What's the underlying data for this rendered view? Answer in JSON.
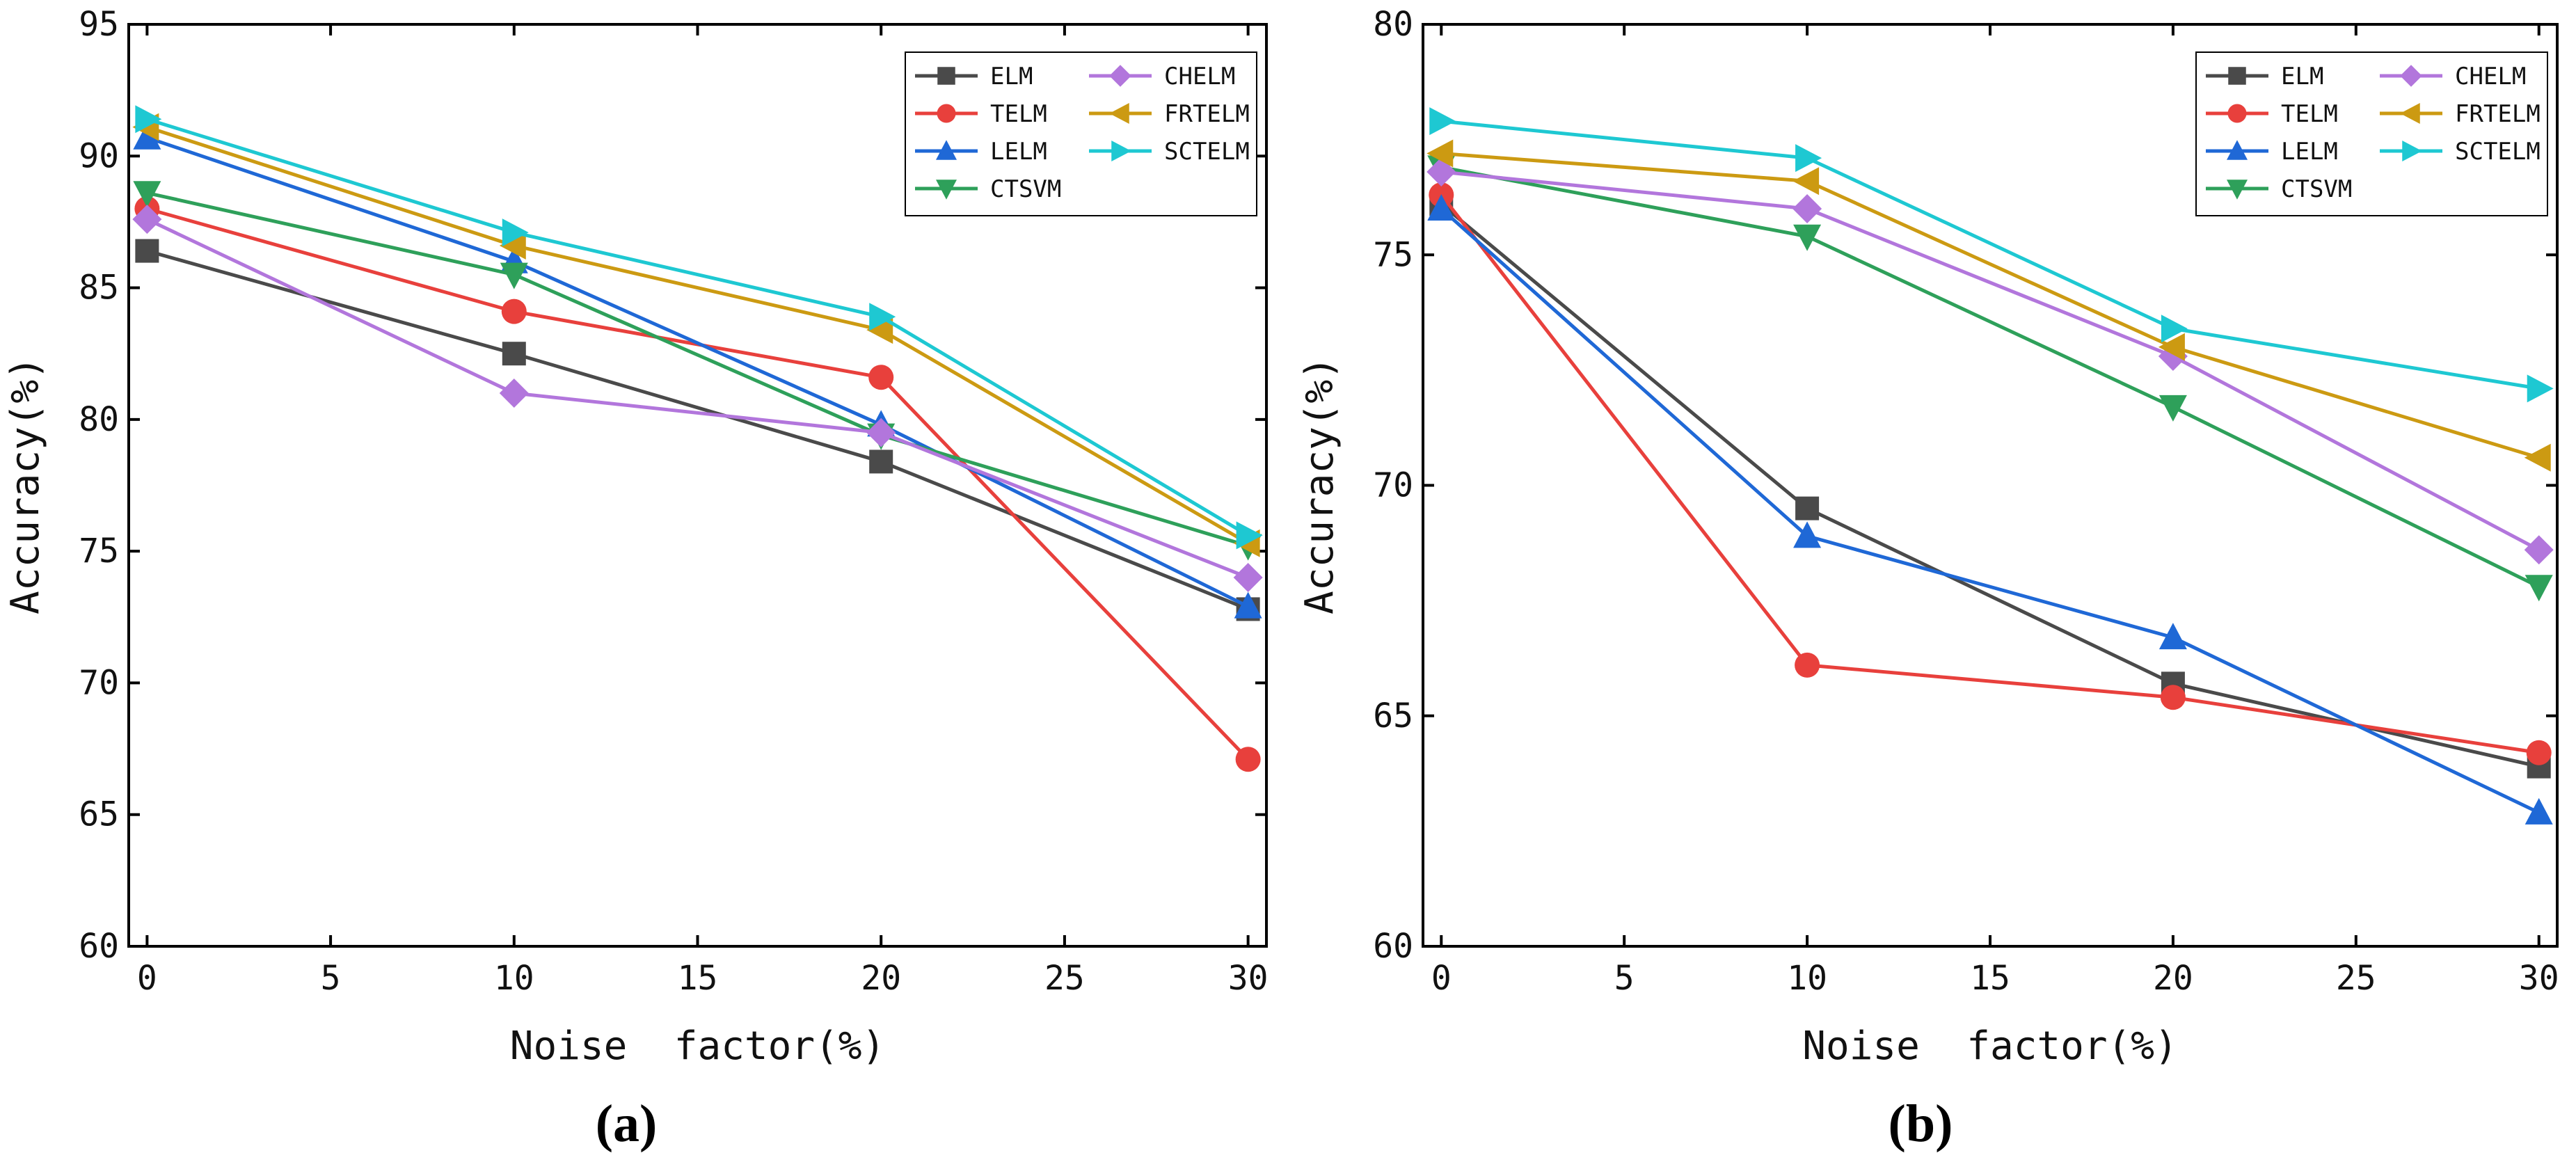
{
  "chart_data": [
    {
      "type": "line",
      "panel_label": "(a)",
      "xlabel": "Noise  factor(%)",
      "ylabel": "Accuracy(%)",
      "x": [
        0,
        10,
        20,
        30
      ],
      "xlim": [
        -0.5,
        30.5
      ],
      "ylim": [
        60,
        95
      ],
      "xticks": [
        0,
        5,
        10,
        15,
        20,
        25,
        30
      ],
      "yticks": [
        60,
        65,
        70,
        75,
        80,
        85,
        90,
        95
      ],
      "legend_position": "top-right",
      "series": [
        {
          "name": "ELM",
          "values": [
            86.4,
            82.5,
            78.4,
            72.8
          ],
          "color": "#4a4a4a",
          "marker": "square"
        },
        {
          "name": "TELM",
          "values": [
            88.0,
            84.1,
            81.6,
            67.1
          ],
          "color": "#e8403c",
          "marker": "circle"
        },
        {
          "name": "LELM",
          "values": [
            90.7,
            86.0,
            79.8,
            72.9
          ],
          "color": "#1f68d6",
          "marker": "triangle-up"
        },
        {
          "name": "CTSVM",
          "values": [
            88.6,
            85.5,
            79.4,
            75.2
          ],
          "color": "#2ea05a",
          "marker": "triangle-down"
        },
        {
          "name": "CHELM",
          "values": [
            87.6,
            81.0,
            79.5,
            74.0
          ],
          "color": "#b276dc",
          "marker": "diamond"
        },
        {
          "name": "FRTELM",
          "values": [
            91.1,
            86.6,
            83.4,
            75.3
          ],
          "color": "#cc9a12",
          "marker": "triangle-left"
        },
        {
          "name": "SCTELM",
          "values": [
            91.4,
            87.1,
            83.9,
            75.6
          ],
          "color": "#1ec8d2",
          "marker": "triangle-right"
        }
      ]
    },
    {
      "type": "line",
      "panel_label": "(b)",
      "xlabel": "Noise  factor(%)",
      "ylabel": "Accuracy(%)",
      "x": [
        0,
        10,
        20,
        30
      ],
      "xlim": [
        -0.5,
        30.5
      ],
      "ylim": [
        60,
        80
      ],
      "xticks": [
        0,
        5,
        10,
        15,
        20,
        25,
        30
      ],
      "yticks": [
        60,
        65,
        70,
        75,
        80
      ],
      "legend_position": "top-right",
      "series": [
        {
          "name": "ELM",
          "values": [
            76.1,
            69.5,
            65.7,
            63.9
          ],
          "color": "#4a4a4a",
          "marker": "square"
        },
        {
          "name": "TELM",
          "values": [
            76.3,
            66.1,
            65.4,
            64.2
          ],
          "color": "#e8403c",
          "marker": "circle"
        },
        {
          "name": "LELM",
          "values": [
            76.0,
            68.9,
            66.7,
            62.9
          ],
          "color": "#1f68d6",
          "marker": "triangle-up"
        },
        {
          "name": "CTSVM",
          "values": [
            76.9,
            75.4,
            71.7,
            67.8
          ],
          "color": "#2ea05a",
          "marker": "triangle-down"
        },
        {
          "name": "CHELM",
          "values": [
            76.8,
            76.0,
            72.8,
            68.6
          ],
          "color": "#b276dc",
          "marker": "diamond"
        },
        {
          "name": "FRTELM",
          "values": [
            77.2,
            76.6,
            73.0,
            70.6
          ],
          "color": "#cc9a12",
          "marker": "triangle-left"
        },
        {
          "name": "SCTELM",
          "values": [
            77.9,
            77.1,
            73.4,
            72.1
          ],
          "color": "#1ec8d2",
          "marker": "triangle-right"
        }
      ]
    }
  ]
}
